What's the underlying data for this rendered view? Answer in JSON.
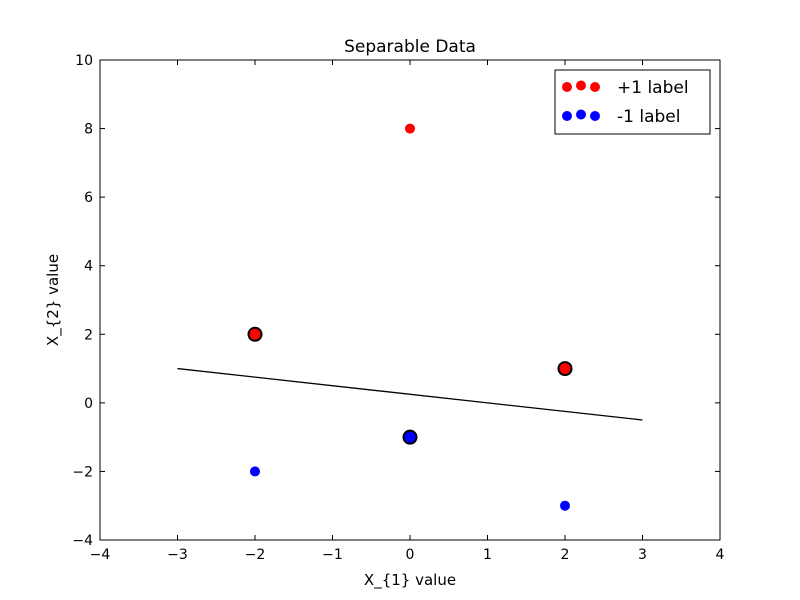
{
  "chart_data": {
    "type": "scatter",
    "title": "Separable Data",
    "xlabel": "X_{1} value",
    "ylabel": "X_{2} value",
    "xlim": [
      -4,
      4
    ],
    "ylim": [
      -4,
      10
    ],
    "x_ticks": [
      -4,
      -3,
      -2,
      -1,
      0,
      1,
      2,
      3,
      4
    ],
    "y_ticks": [
      -4,
      -2,
      0,
      2,
      4,
      6,
      8,
      10
    ],
    "grid": false,
    "legend_position": "top-right",
    "series": [
      {
        "name": "+1 label",
        "color": "#ff0000",
        "points": [
          {
            "x": 0,
            "y": 8,
            "support_vector": false
          },
          {
            "x": -2,
            "y": 2,
            "support_vector": true
          },
          {
            "x": 2,
            "y": 1,
            "support_vector": true
          }
        ]
      },
      {
        "name": "-1 label",
        "color": "#0000ff",
        "points": [
          {
            "x": 0,
            "y": -1,
            "support_vector": true
          },
          {
            "x": -2,
            "y": -2,
            "support_vector": false
          },
          {
            "x": 2,
            "y": -3,
            "support_vector": false
          }
        ]
      }
    ],
    "decision_boundary": {
      "x": [
        -3,
        3
      ],
      "y": [
        1,
        -0.5
      ],
      "color": "#000000"
    }
  }
}
